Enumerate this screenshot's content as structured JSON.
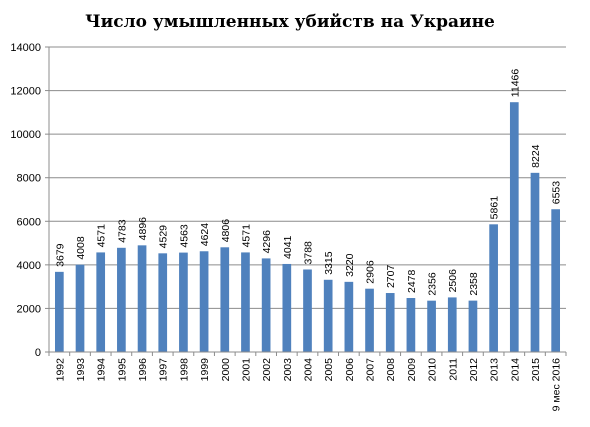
{
  "chart_data": {
    "type": "bar",
    "title": "Число умышленных убийств на Украине",
    "xlabel": "",
    "ylabel": "",
    "ylim": [
      0,
      14000
    ],
    "yticks": [
      0,
      2000,
      4000,
      6000,
      8000,
      10000,
      12000,
      14000
    ],
    "grid": true,
    "legend": "none",
    "bar_color": "#4f81bd",
    "categories": [
      "1992",
      "1993",
      "1994",
      "1995",
      "1996",
      "1997",
      "1998",
      "1999",
      "2000",
      "2001",
      "2002",
      "2003",
      "2004",
      "2005",
      "2006",
      "2007",
      "2008",
      "2009",
      "2010",
      "2011",
      "2012",
      "2013",
      "2014",
      "2015",
      "9 мес 2016"
    ],
    "values": [
      3679,
      4008,
      4571,
      4783,
      4896,
      4529,
      4563,
      4624,
      4806,
      4571,
      4296,
      4041,
      3788,
      3315,
      3220,
      2906,
      2707,
      2478,
      2356,
      2506,
      2358,
      5861,
      11466,
      8224,
      6553
    ]
  }
}
